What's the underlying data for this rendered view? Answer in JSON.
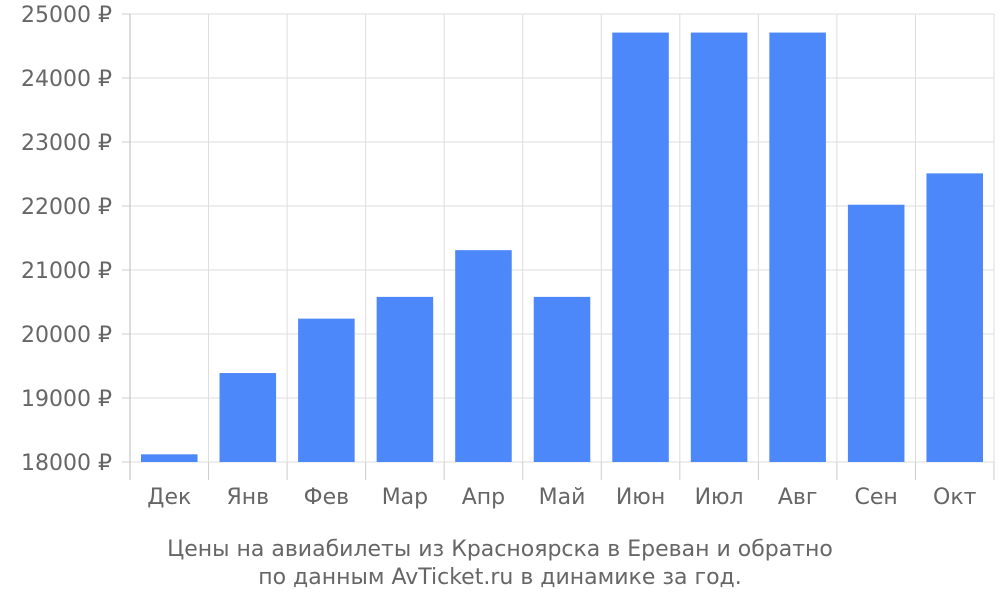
{
  "chart_data": {
    "type": "bar",
    "categories": [
      "Дек",
      "Янв",
      "Фев",
      "Мар",
      "Апр",
      "Май",
      "Июн",
      "Июл",
      "Авг",
      "Сен",
      "Окт"
    ],
    "values": [
      18120,
      19390,
      20240,
      20580,
      21310,
      20580,
      24710,
      24710,
      24710,
      22020,
      22510
    ],
    "ylim": [
      18000,
      25000
    ],
    "yticks": [
      18000,
      19000,
      20000,
      21000,
      22000,
      23000,
      24000,
      25000
    ],
    "ytick_labels": [
      "18000 ₽",
      "19000 ₽",
      "20000 ₽",
      "21000 ₽",
      "22000 ₽",
      "23000 ₽",
      "24000 ₽",
      "25000 ₽"
    ],
    "grid": true,
    "bar_color": "#4d88fa",
    "grid_color": "#dddddd",
    "title": "",
    "xlabel": "",
    "ylabel": ""
  },
  "caption": {
    "line1": "Цены на авиабилеты из Красноярска в Ереван и обратно",
    "line2": "по данным AvTicket.ru в динамике за год."
  }
}
